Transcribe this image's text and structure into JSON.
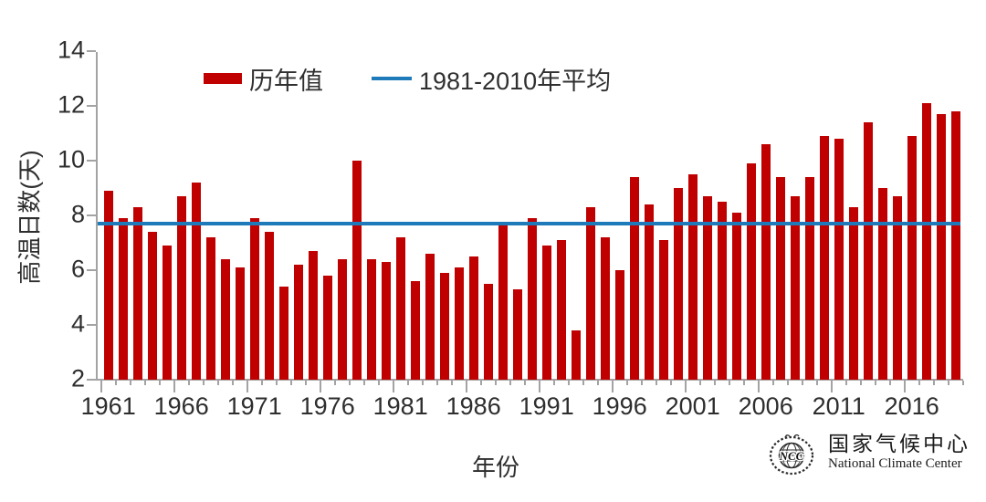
{
  "legend": {
    "items": [
      {
        "label": "历年值",
        "type": "bar",
        "color": "#c00000"
      },
      {
        "label": "1981-2010年平均",
        "type": "line",
        "color": "#1f7ab9"
      }
    ]
  },
  "axes": {
    "y_title": "高温日数(天)",
    "x_title": "年份",
    "y_ticks": [
      2,
      4,
      6,
      8,
      10,
      12,
      14
    ],
    "x_tick_labels": [
      "1961",
      "1966",
      "1971",
      "1976",
      "1981",
      "1986",
      "1991",
      "1996",
      "2001",
      "2006",
      "2011",
      "2016"
    ]
  },
  "logo": {
    "monogram": "NCC",
    "cn_name": "国家气候中心",
    "en_name": "National Climate Center"
  },
  "chart_data": {
    "type": "bar",
    "title": "",
    "xlabel": "年份",
    "ylabel": "高温日数(天)",
    "ylim": [
      2,
      14
    ],
    "grid": false,
    "legend_position": "top",
    "bar_color": "#c00000",
    "line_color": "#1f7ab9",
    "series_name": "历年值",
    "reference_line": {
      "label": "1981-2010年平均",
      "value": 7.7
    },
    "years": [
      1961,
      1962,
      1963,
      1964,
      1965,
      1966,
      1967,
      1968,
      1969,
      1970,
      1971,
      1972,
      1973,
      1974,
      1975,
      1976,
      1977,
      1978,
      1979,
      1980,
      1981,
      1982,
      1983,
      1984,
      1985,
      1986,
      1987,
      1988,
      1989,
      1990,
      1991,
      1992,
      1993,
      1994,
      1995,
      1996,
      1997,
      1998,
      1999,
      2000,
      2001,
      2002,
      2003,
      2004,
      2005,
      2006,
      2007,
      2008,
      2009,
      2010,
      2011,
      2012,
      2013,
      2014,
      2015,
      2016,
      2017,
      2018,
      2019
    ],
    "values": [
      8.9,
      7.9,
      8.3,
      7.4,
      6.9,
      8.7,
      9.2,
      7.2,
      6.4,
      6.1,
      7.9,
      7.4,
      5.4,
      6.2,
      6.7,
      5.8,
      6.4,
      10.0,
      6.4,
      6.3,
      7.2,
      5.6,
      6.6,
      5.9,
      6.1,
      6.5,
      5.5,
      7.7,
      5.3,
      7.9,
      6.9,
      7.1,
      3.8,
      8.3,
      7.2,
      6.0,
      9.4,
      8.4,
      7.1,
      9.0,
      9.5,
      8.7,
      8.5,
      8.1,
      9.9,
      10.6,
      9.4,
      8.7,
      9.4,
      10.9,
      10.8,
      8.3,
      11.4,
      9.0,
      8.7,
      10.9,
      12.1,
      11.7,
      11.8
    ]
  }
}
